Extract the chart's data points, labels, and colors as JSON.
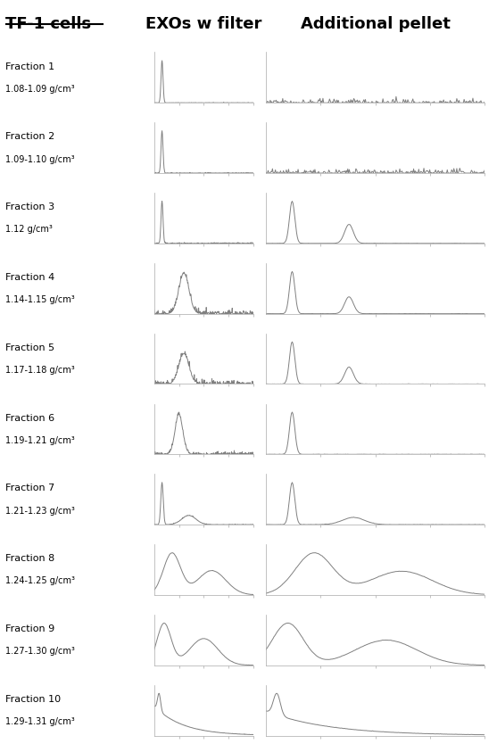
{
  "title_left": "TF-1 cells",
  "title_mid": "EXOs w filter",
  "title_right": "Additional pellet",
  "fractions": [
    {
      "label": "Fraction 1",
      "density": "1.08-1.09 g/cm³"
    },
    {
      "label": "Fraction 2",
      "density": "1.09-1.10 g/cm³"
    },
    {
      "label": "Fraction 3",
      "density": "1.12 g/cm³"
    },
    {
      "label": "Fraction 4",
      "density": "1.14-1.15 g/cm³"
    },
    {
      "label": "Fraction 5",
      "density": "1.17-1.18 g/cm³"
    },
    {
      "label": "Fraction 6",
      "density": "1.19-1.21 g/cm³"
    },
    {
      "label": "Fraction 7",
      "density": "1.21-1.23 g/cm³"
    },
    {
      "label": "Fraction 8",
      "density": "1.24-1.25 g/cm³"
    },
    {
      "label": "Fraction 9",
      "density": "1.27-1.30 g/cm³"
    },
    {
      "label": "Fraction 10",
      "density": "1.29-1.31 g/cm³"
    }
  ],
  "bg_color": "#ffffff",
  "line_color": "#808080",
  "axis_color": "#aaaaaa",
  "label_color": "#000000"
}
